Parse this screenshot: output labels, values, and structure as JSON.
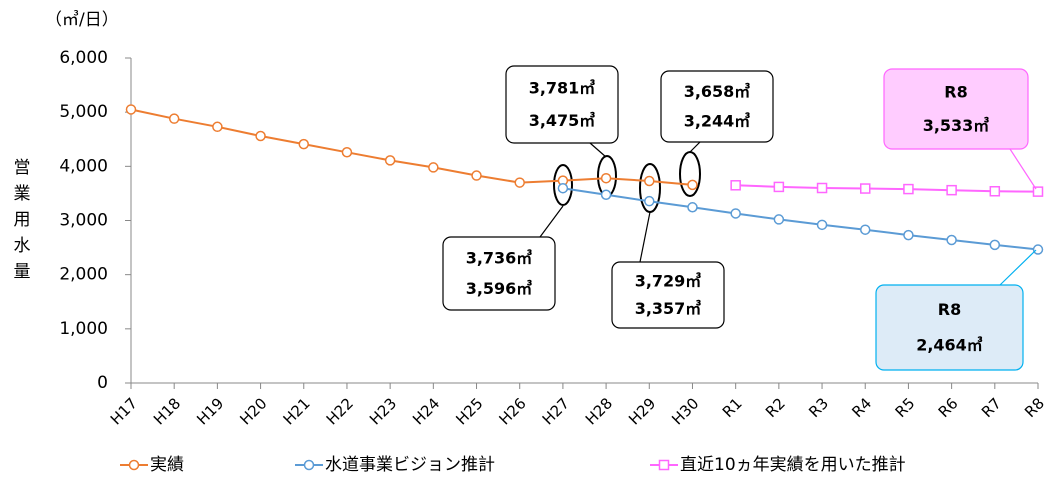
{
  "chart_data": {
    "type": "line",
    "unit_label": "（㎥/日）",
    "ylabel": "営業用水量",
    "categories": [
      "H17",
      "H18",
      "H19",
      "H20",
      "H21",
      "H22",
      "H23",
      "H24",
      "H25",
      "H26",
      "H27",
      "H28",
      "H29",
      "H30",
      "R1",
      "R2",
      "R3",
      "R4",
      "R5",
      "R6",
      "R7",
      "R8"
    ],
    "series": [
      {
        "name": "実績",
        "color": "#ED7D31",
        "marker": "circle",
        "values": [
          5050,
          4880,
          4730,
          4560,
          4410,
          4260,
          4110,
          3980,
          3830,
          3700,
          3736,
          3781,
          3729,
          3658,
          null,
          null,
          null,
          null,
          null,
          null,
          null,
          null
        ]
      },
      {
        "name": "水道事業ビジョン推計",
        "color": "#5B9BD5",
        "marker": "circle",
        "values": [
          null,
          null,
          null,
          null,
          null,
          null,
          null,
          null,
          null,
          null,
          3596,
          3475,
          3357,
          3244,
          3130,
          3020,
          2920,
          2830,
          2730,
          2640,
          2550,
          2464
        ]
      },
      {
        "name": "直近10ヵ年実績を用いた推計",
        "color": "#FF66FF",
        "marker": "square",
        "values": [
          null,
          null,
          null,
          null,
          null,
          null,
          null,
          null,
          null,
          null,
          null,
          null,
          null,
          null,
          3650,
          3620,
          3600,
          3590,
          3580,
          3560,
          3540,
          3533
        ]
      }
    ],
    "ylim": [
      0,
      6000
    ],
    "yticks": [
      0,
      {
        "value": 1000,
        "label": "1,000"
      },
      {
        "value": 2000,
        "label": "2,000"
      },
      {
        "value": 3000,
        "label": "3,000"
      },
      {
        "value": 4000,
        "label": "4,000"
      },
      {
        "value": 5000,
        "label": "5,000"
      },
      {
        "value": 6000,
        "label": "6,000"
      }
    ],
    "annotations": [
      {
        "lines": [
          "3,736㎥",
          "3,596㎥"
        ]
      },
      {
        "lines": [
          "3,781㎥",
          "3,475㎥"
        ]
      },
      {
        "lines": [
          "3,729㎥",
          "3,357㎥"
        ]
      },
      {
        "lines": [
          "3,658㎥",
          "3,244㎥"
        ]
      },
      {
        "lines": [
          "R8",
          "3,533㎥"
        ]
      },
      {
        "lines": [
          "R8",
          "2,464㎥"
        ]
      }
    ]
  }
}
